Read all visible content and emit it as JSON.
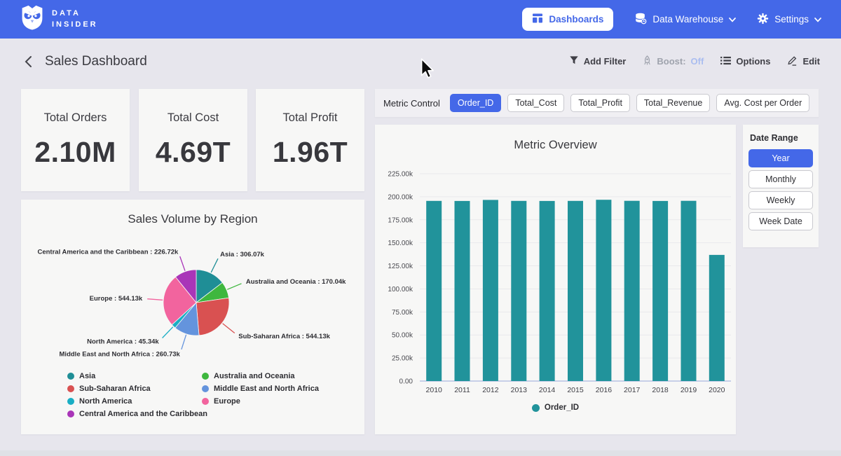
{
  "brand": {
    "line1": "DATA",
    "line2": "INSIDER"
  },
  "navbar": {
    "dashboards_label": "Dashboards",
    "data_warehouse_label": "Data Warehouse",
    "settings_label": "Settings"
  },
  "header": {
    "title": "Sales Dashboard",
    "add_filter_label": "Add Filter",
    "boost_label": "Boost:",
    "boost_value": "Off",
    "options_label": "Options",
    "edit_label": "Edit"
  },
  "kpis": [
    {
      "label": "Total Orders",
      "value": "2.10M"
    },
    {
      "label": "Total Cost",
      "value": "4.69T"
    },
    {
      "label": "Total Profit",
      "value": "1.96T"
    }
  ],
  "metric_control": {
    "label": "Metric Control",
    "options": [
      {
        "label": "Order_ID",
        "selected": true
      },
      {
        "label": "Total_Cost",
        "selected": false
      },
      {
        "label": "Total_Profit",
        "selected": false
      },
      {
        "label": "Total_Revenue",
        "selected": false
      },
      {
        "label": "Avg. Cost per Order",
        "selected": false
      }
    ]
  },
  "date_range": {
    "label": "Date Range",
    "options": [
      {
        "label": "Year",
        "selected": true
      },
      {
        "label": "Monthly",
        "selected": false
      },
      {
        "label": "Weekly",
        "selected": false
      },
      {
        "label": "Week Date",
        "selected": false
      }
    ]
  },
  "icons": {
    "logo": "owl-icon",
    "dashboards": "dashboard-grid-icon",
    "data_warehouse": "database-icon",
    "settings": "gear-icon",
    "back": "chevron-left-icon",
    "add_filter": "funnel-icon",
    "boost": "rocket-icon",
    "options": "list-icon",
    "edit": "pencil-icon"
  },
  "colors": {
    "navbar_blue": "#4468e8",
    "accent_blue": "#4468e8",
    "bar_teal": "#21939b",
    "boost_off_blue": "#aabdf0",
    "card_bg": "#f7f7f6",
    "page_bg": "#e7e6ed"
  },
  "chart_data": [
    {
      "type": "pie",
      "title": "Sales Volume by Region",
      "value_unit": "k",
      "slices": [
        {
          "label": "Asia",
          "value": 306.07,
          "display": "Asia : 306.07k",
          "color": "#1f8e96"
        },
        {
          "label": "Australia and Oceania",
          "value": 170.04,
          "display": "Australia and Oceania : 170.04k",
          "color": "#3eb73e"
        },
        {
          "label": "Sub-Saharan Africa",
          "value": 544.13,
          "display": "Sub-Saharan Africa : 544.13k",
          "color": "#d95151"
        },
        {
          "label": "Middle East and North Africa",
          "value": 260.73,
          "display": "Middle East and North Africa : 260.73k",
          "color": "#6494dd"
        },
        {
          "label": "North America",
          "value": 45.34,
          "display": "North America : 45.34k",
          "color": "#19aec4"
        },
        {
          "label": "Europe",
          "value": 544.13,
          "display": "Europe : 544.13k",
          "color": "#f2649e"
        },
        {
          "label": "Central America and the Caribbean",
          "value": 226.72,
          "display": "Central America and the Caribbean : 226.72k",
          "color": "#a935b8"
        }
      ],
      "legend_columns": [
        [
          "Asia",
          "Sub-Saharan Africa",
          "North America",
          "Central America and the Caribbean"
        ],
        [
          "Australia and Oceania",
          "Middle East and North Africa",
          "Europe"
        ]
      ],
      "legend_position": "bottom"
    },
    {
      "type": "bar",
      "title": "Metric Overview",
      "categories": [
        "2010",
        "2011",
        "2012",
        "2013",
        "2014",
        "2015",
        "2016",
        "2017",
        "2018",
        "2019",
        "2020"
      ],
      "series": [
        {
          "name": "Order_ID",
          "color": "#21939b",
          "values": [
            195500,
            195400,
            196600,
            195500,
            195400,
            195500,
            196700,
            195600,
            195400,
            195600,
            136900
          ]
        }
      ],
      "ylim": [
        0,
        225000
      ],
      "yticks": [
        {
          "value": 0,
          "label": "0.00"
        },
        {
          "value": 25000,
          "label": "25.00k"
        },
        {
          "value": 50000,
          "label": "50.00k"
        },
        {
          "value": 75000,
          "label": "75.00k"
        },
        {
          "value": 100000,
          "label": "100.00k"
        },
        {
          "value": 125000,
          "label": "125.00k"
        },
        {
          "value": 150000,
          "label": "150.00k"
        },
        {
          "value": 175000,
          "label": "175.00k"
        },
        {
          "value": 200000,
          "label": "200.00k"
        },
        {
          "value": 225000,
          "label": "225.00k"
        }
      ],
      "grid": true,
      "legend": [
        "Order_ID"
      ],
      "legend_position": "bottom"
    }
  ]
}
